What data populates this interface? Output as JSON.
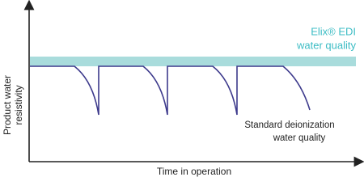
{
  "diagram": {
    "y_axis_label": [
      "Product water",
      "resistivity"
    ],
    "x_axis_label": "Time in operation",
    "edi_label": [
      "Elix® EDI",
      "water quality"
    ],
    "standard_label": [
      "Standard deionization",
      "water quality"
    ]
  }
}
